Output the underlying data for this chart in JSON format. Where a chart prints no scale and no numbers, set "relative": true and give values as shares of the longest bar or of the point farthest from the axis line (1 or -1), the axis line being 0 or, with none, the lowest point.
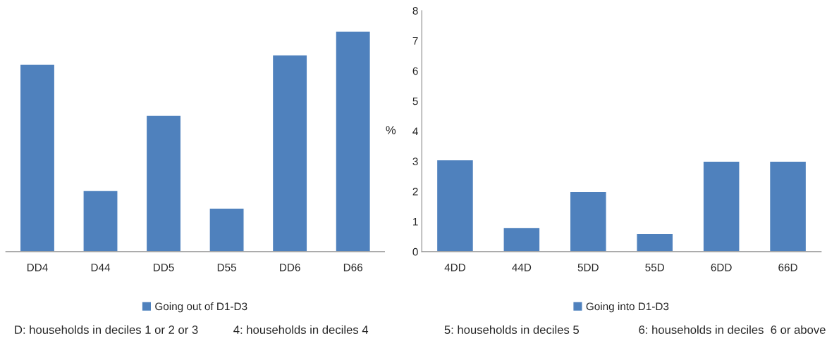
{
  "chart_data": [
    {
      "type": "bar",
      "categories": [
        "DD4",
        "D44",
        "DD5",
        "D55",
        "DD6",
        "D66"
      ],
      "relative": true,
      "tick_labels": "x",
      "legend": "bottom",
      "series": [
        {
          "name": "Going out of D1-D3",
          "color": "#4f81bd",
          "values": [
            0.85,
            0.277,
            0.618,
            0.197,
            0.892,
            1
          ]
        }
      ],
      "annotations": [
        "D: households in deciles 1 or 2 or 3",
        "4: households in deciles 4"
      ]
    },
    {
      "type": "bar",
      "categories": [
        "4DD",
        "44D",
        "5DD",
        "55D",
        "6DD",
        "66D"
      ],
      "ylabel": "%",
      "ylim": [
        0,
        8
      ],
      "yticks": [
        0,
        1,
        2,
        3,
        4,
        5,
        6,
        7,
        8
      ],
      "legend": "bottom",
      "series": [
        {
          "name": "Going into D1-D3",
          "color": "#4f81bd",
          "values": [
            3.05,
            0.8,
            2.0,
            0.6,
            3.0,
            3.0
          ]
        }
      ],
      "annotations": [
        "5: households in deciles 5",
        "6: households in deciles  6 or above"
      ]
    }
  ]
}
